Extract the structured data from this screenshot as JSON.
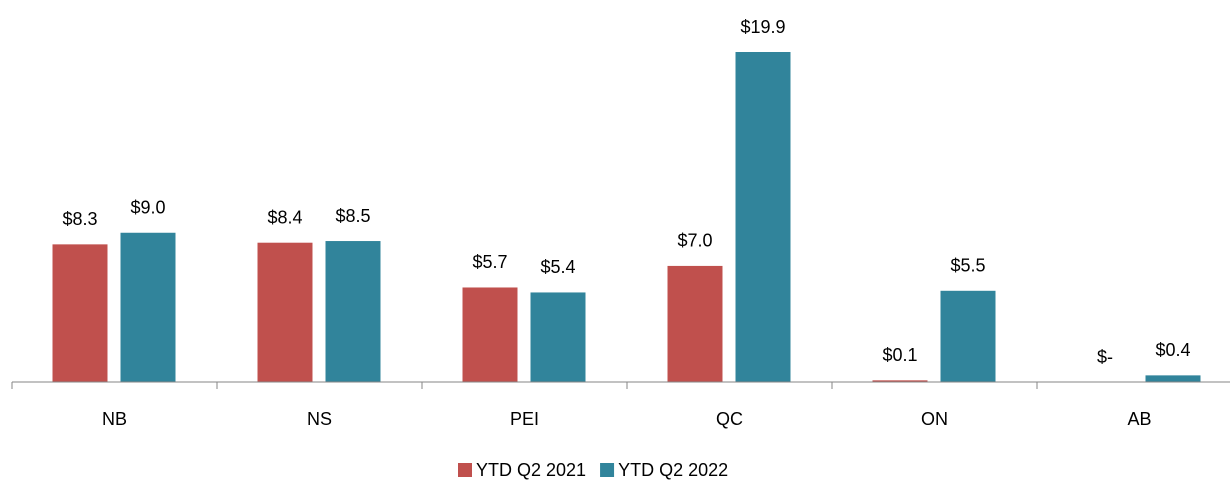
{
  "chart_data": {
    "type": "bar",
    "categories": [
      "NB",
      "NS",
      "PEI",
      "QC",
      "ON",
      "AB"
    ],
    "series": [
      {
        "name": "YTD Q2 2021",
        "color": "#c0504d",
        "values": [
          8.3,
          8.4,
          5.7,
          7.0,
          0.1,
          0
        ],
        "value_labels": [
          "$8.3",
          "$8.4",
          "$5.7",
          "$7.0",
          "$0.1",
          "$-"
        ]
      },
      {
        "name": "YTD Q2 2022",
        "color": "#31849b",
        "values": [
          9.0,
          8.5,
          5.4,
          19.9,
          5.5,
          0.4
        ],
        "value_labels": [
          "$9.0",
          "$8.5",
          "$5.4",
          "$19.9",
          "$5.5",
          "$0.4"
        ]
      }
    ],
    "legend": "bottom"
  }
}
